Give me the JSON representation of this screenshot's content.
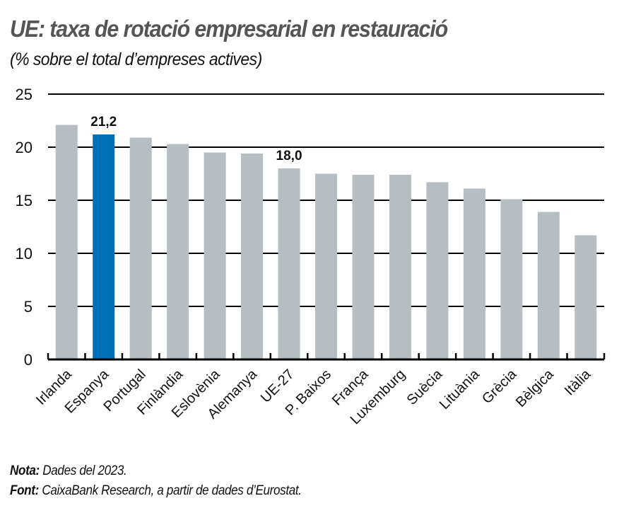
{
  "header": {
    "title": "UE: taxa de rotació empresarial en restauració",
    "subtitle": "(% sobre el total d’empreses actives)"
  },
  "footer": {
    "note_label": "Nota:",
    "note_text": " Dades del 2023.",
    "source_label": "Font:",
    "source_text": " CaixaBank Research, a partir de dades d’Eurostat."
  },
  "colors": {
    "highlight": "#0070b8",
    "default": "#b4bec3",
    "grid": "#000000",
    "title": "#555555"
  },
  "chart_data": {
    "type": "bar",
    "title": "UE: taxa de rotació empresarial en restauració",
    "subtitle": "(% sobre el total d’empreses actives)",
    "xlabel": "",
    "ylabel": "% sobre el total d’empreses actives",
    "ylim": [
      0,
      25
    ],
    "yticks": [
      0,
      5,
      10,
      15,
      20,
      25
    ],
    "grid": true,
    "legend": null,
    "categories": [
      "Irlanda",
      "Espanya",
      "Portugal",
      "Finlàndia",
      "Eslovènia",
      "Alemanya",
      "UE-27",
      "P. Baixos",
      "França",
      "Luxemburg",
      "Suècia",
      "Lituània",
      "Grècia",
      "Bèlgica",
      "Itàlia"
    ],
    "values": [
      22.1,
      21.2,
      20.9,
      20.3,
      19.5,
      19.4,
      18.0,
      17.5,
      17.4,
      17.4,
      16.7,
      16.1,
      15.1,
      13.9,
      11.7
    ],
    "highlighted": [
      "Espanya"
    ],
    "data_labels": [
      {
        "category": "Espanya",
        "text": "21,2"
      },
      {
        "category": "UE-27",
        "text": "18,0"
      }
    ]
  }
}
